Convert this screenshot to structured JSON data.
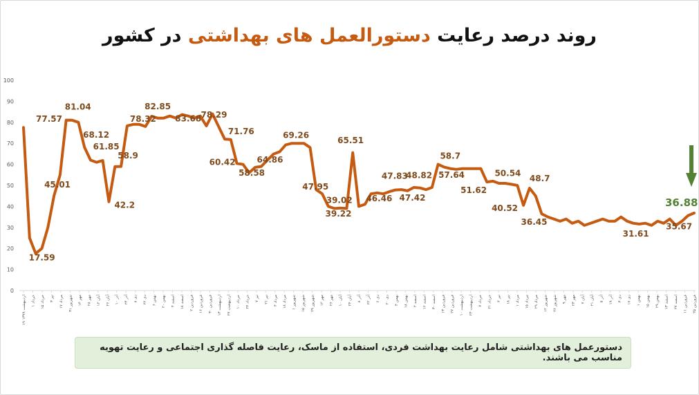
{
  "title": {
    "part1": "روند درصد رعایت",
    "part2": "دستورالعمل های بهداشتی",
    "part3": "در کشور"
  },
  "note": "دستورعمل های بهداشتی شامل رعایت بهداشت فردی، استفاده از ماسک، رعایت فاصله گذاری اجتماعی و رعایت تهویه مناسب می باشند.",
  "colors": {
    "line": "#c55a11",
    "label": "#7f4a1c",
    "last_label": "#548235",
    "arrow": "#548235",
    "axis_text": "#595959",
    "grid": "#d9d9d9"
  },
  "icons": {
    "arrow": "arrow-down-icon"
  },
  "chart_data": {
    "type": "line",
    "title": "روند درصد رعایت دستورالعمل های بهداشتی در کشور",
    "xlabel": "",
    "ylabel": "",
    "ylim": [
      0,
      100
    ],
    "yticks": [
      0,
      10,
      20,
      30,
      40,
      50,
      60,
      70,
      80,
      90,
      100
    ],
    "grid": false,
    "x_tick_labels": [
      "۱۹ اردیبهشت ۱۳۹۹",
      "۱ خرداد",
      "۱۵ خرداد",
      "۳ تیر",
      "۱۷ مرداد",
      "۳۱ شهریور",
      "۱۴ مهر",
      "۲۸ مهر",
      "۱۲ آبان",
      "۲۶ آبان",
      "۱۰ آذر",
      "۲۴ آذر",
      "۸ دی",
      "۲۲ دی",
      "۶ بهمن",
      "۲۰ بهمن",
      "۴ اسفند",
      "۱۸ اسفند",
      "۲ فروردین",
      "۱۶ فروردین",
      "۳۰ فروردین",
      "۱۳ اردیبهشت",
      "۲۷ اردیبهشت",
      "۱۰ خرداد",
      "۲۴ خرداد",
      "۷ تیر",
      "۲۱ تیر",
      "۴ مرداد",
      "۱۸ مرداد",
      "۱ شهریور",
      "۱۵ شهریور",
      "۲۹ شهریور",
      "۱۲ مهر",
      "۲۶ مهر",
      "۱۰ آبان",
      "۲۴ آبان",
      "۸ آذر",
      "۲۲ آذر",
      "۶ دی",
      "۲۰ دی",
      "۴ بهمن",
      "۱۸ بهمن",
      "۲ اسفند",
      "۱۶ اسفند",
      "۳۰ اسفند",
      "۱۳ فروردین",
      "۲۷ فروردین",
      "۱۰ اردیبهشت",
      "۲۴ اردیبهشت",
      "۷ خرداد",
      "۲۱ خرداد",
      "۴ تیر",
      "۱۸ تیر",
      "۱ مرداد",
      "۱۵ مرداد",
      "۲۹ مرداد",
      "۱۲ شهریور",
      "۲۶ شهریور",
      "۹ مهر",
      "۲۳ مهر",
      "۷ آبان",
      "۲۱ آبان",
      "۵ آذر",
      "۱۹ آذر",
      "۳ دی",
      "۱۷ دی",
      "۱ بهمن",
      "۱۵ بهمن",
      "۲۹ بهمن",
      "۱۳ اسفند",
      "۲۷ اسفند",
      "۱۱ فروردین",
      "۲۵ فروردین"
    ],
    "series": [
      {
        "values": [
          77.57,
          25,
          17.59,
          20,
          30,
          45.01,
          55,
          81.04,
          81,
          80,
          68.12,
          62,
          61,
          61.85,
          42.2,
          58.9,
          59,
          78.32,
          79,
          79,
          78,
          82.85,
          82,
          82,
          83,
          82,
          83.68,
          83,
          82,
          83,
          78.29,
          84,
          78,
          72,
          71.76,
          60.42,
          60,
          56,
          58.58,
          59,
          62,
          64.86,
          66,
          69.26,
          70,
          70,
          70,
          68,
          47.95,
          46,
          40,
          39.02,
          39.22,
          39,
          65.51,
          40,
          41,
          46,
          46.46,
          46,
          47,
          47.83,
          48,
          47.42,
          49,
          48.82,
          48,
          49,
          60,
          58.7,
          58,
          57.64,
          58,
          58,
          58,
          58,
          51.62,
          52,
          51,
          51,
          50.54,
          50,
          40.52,
          48.7,
          45,
          36.45,
          35,
          34,
          33,
          34,
          32,
          33,
          31,
          32,
          33,
          34,
          33,
          33,
          35,
          33,
          32,
          31.61,
          32,
          31,
          33,
          32,
          34,
          31,
          33,
          35.67,
          36.88
        ]
      }
    ],
    "data_labels": [
      {
        "index": 0,
        "text": "77.57"
      },
      {
        "index": 2,
        "text": "17.59"
      },
      {
        "index": 5,
        "text": "45.01"
      },
      {
        "index": 7,
        "text": "81.04"
      },
      {
        "index": 10,
        "text": "68.12"
      },
      {
        "index": 13,
        "text": "61.85"
      },
      {
        "index": 14,
        "text": "42.2"
      },
      {
        "index": 15,
        "text": "58.9"
      },
      {
        "index": 17,
        "text": "78.32"
      },
      {
        "index": 21,
        "text": "82.85"
      },
      {
        "index": 26,
        "text": "83.68"
      },
      {
        "index": 30,
        "text": "78.29"
      },
      {
        "index": 34,
        "text": "71.76"
      },
      {
        "index": 35,
        "text": "60.42"
      },
      {
        "index": 38,
        "text": "58.58"
      },
      {
        "index": 41,
        "text": "64.86"
      },
      {
        "index": 43,
        "text": "69.26"
      },
      {
        "index": 48,
        "text": "47.95"
      },
      {
        "index": 51,
        "text": "39.02"
      },
      {
        "index": 52,
        "text": "39.22"
      },
      {
        "index": 54,
        "text": "65.51"
      },
      {
        "index": 58,
        "text": "46.46"
      },
      {
        "index": 61,
        "text": "47.83"
      },
      {
        "index": 63,
        "text": "47.42"
      },
      {
        "index": 65,
        "text": "48.82"
      },
      {
        "index": 69,
        "text": "58.7"
      },
      {
        "index": 71,
        "text": "57.64"
      },
      {
        "index": 76,
        "text": "51.62"
      },
      {
        "index": 80,
        "text": "50.54"
      },
      {
        "index": 82,
        "text": "40.52"
      },
      {
        "index": 83,
        "text": "48.7"
      },
      {
        "index": 85,
        "text": "36.45"
      },
      {
        "index": 101,
        "text": "31.61"
      },
      {
        "index": 109,
        "text": "35.67"
      },
      {
        "index": 110,
        "text": "36.88"
      }
    ]
  }
}
